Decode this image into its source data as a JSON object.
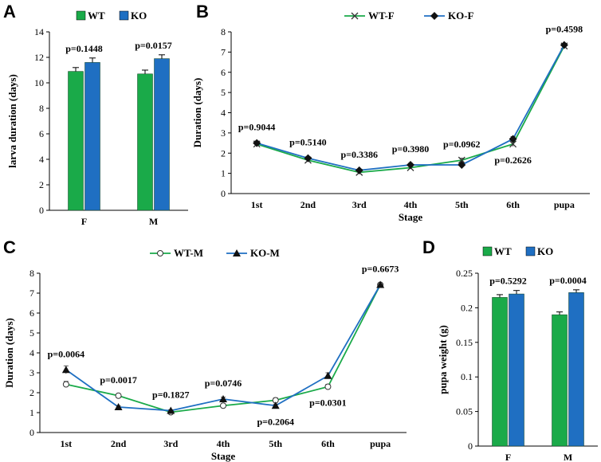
{
  "colors": {
    "wt": "#1aaa49",
    "ko": "#1f6fc2",
    "axis": "#000000"
  },
  "panels": {
    "A": "A",
    "B": "B",
    "C": "C",
    "D": "D"
  },
  "chart_data": [
    {
      "id": "A",
      "type": "bar",
      "title": "",
      "ylabel": "larva duration (days)",
      "xlabel": "",
      "categories": [
        "F",
        "M"
      ],
      "ylim": [
        0,
        14
      ],
      "yticks": [
        "0",
        "2",
        "4",
        "6",
        "8",
        "10",
        "12",
        "14"
      ],
      "series": [
        {
          "name": "WT",
          "values": [
            10.9,
            10.7
          ],
          "errors": [
            0.3,
            0.3
          ]
        },
        {
          "name": "KO",
          "values": [
            11.6,
            11.9
          ],
          "errors": [
            0.35,
            0.3
          ]
        }
      ],
      "pvalues": [
        "p=0.1448",
        "p=0.0157"
      ],
      "legend": [
        "WT",
        "KO"
      ]
    },
    {
      "id": "B",
      "type": "line",
      "ylabel": "Duration (days)",
      "xlabel": "Stage",
      "categories": [
        "1st",
        "2nd",
        "3rd",
        "4th",
        "5th",
        "6th",
        "pupa"
      ],
      "ylim": [
        0,
        8
      ],
      "yticks": [
        "0",
        "1",
        "2",
        "3",
        "4",
        "5",
        "6",
        "7",
        "8"
      ],
      "series": [
        {
          "name": "WT-F",
          "values": [
            2.45,
            1.65,
            1.05,
            1.28,
            1.65,
            2.45,
            7.3
          ],
          "errors": [
            0.1,
            0.08,
            0.05,
            0.07,
            0.1,
            0.12,
            0.05
          ]
        },
        {
          "name": "KO-F",
          "values": [
            2.5,
            1.75,
            1.15,
            1.42,
            1.42,
            2.7,
            7.35
          ],
          "errors": [
            0.1,
            0.08,
            0.06,
            0.08,
            0.1,
            0.12,
            0.05
          ]
        }
      ],
      "pvalues": [
        "p=0.9044",
        "p=0.5140",
        "p=0.3386",
        "p=0.3980",
        "p=0.0962",
        "p=0.2626",
        "p=0.4598"
      ],
      "legend": [
        "WT-F",
        "KO-F"
      ]
    },
    {
      "id": "C",
      "type": "line",
      "ylabel": "Duration (days)",
      "xlabel": "Stage",
      "categories": [
        "1st",
        "2nd",
        "3rd",
        "4th",
        "5th",
        "6th",
        "pupa"
      ],
      "ylim": [
        0,
        8
      ],
      "yticks": [
        "0",
        "1",
        "2",
        "3",
        "4",
        "5",
        "6",
        "7",
        "8"
      ],
      "series": [
        {
          "name": "WT-M",
          "values": [
            2.42,
            1.85,
            1.02,
            1.35,
            1.62,
            2.3,
            7.42
          ],
          "errors": [
            0.15,
            0.06,
            0.05,
            0.1,
            0.12,
            0.12,
            0.05
          ]
        },
        {
          "name": "KO-M",
          "values": [
            3.15,
            1.28,
            1.1,
            1.68,
            1.35,
            2.85,
            7.42
          ],
          "errors": [
            0.2,
            0.07,
            0.05,
            0.1,
            0.08,
            0.15,
            0.05
          ]
        }
      ],
      "pvalues": [
        "p=0.0064",
        "p=0.0017",
        "p=0.1827",
        "p=0.0746",
        "p=0.2064",
        "p=0.0301",
        "p=0.6673"
      ],
      "legend": [
        "WT-M",
        "KO-M"
      ]
    },
    {
      "id": "D",
      "type": "bar",
      "ylabel": "pupa weight (g)",
      "xlabel": "",
      "categories": [
        "F",
        "M"
      ],
      "ylim": [
        0,
        0.25
      ],
      "yticks": [
        "0",
        "0.05",
        "0.1",
        "0.15",
        "0.2",
        "0.25"
      ],
      "series": [
        {
          "name": "WT",
          "values": [
            0.215,
            0.19
          ],
          "errors": [
            0.004,
            0.004
          ]
        },
        {
          "name": "KO",
          "values": [
            0.22,
            0.222
          ],
          "errors": [
            0.005,
            0.004
          ]
        }
      ],
      "pvalues": [
        "p=0.5292",
        "p=0.0004"
      ],
      "legend": [
        "WT",
        "KO"
      ]
    }
  ]
}
